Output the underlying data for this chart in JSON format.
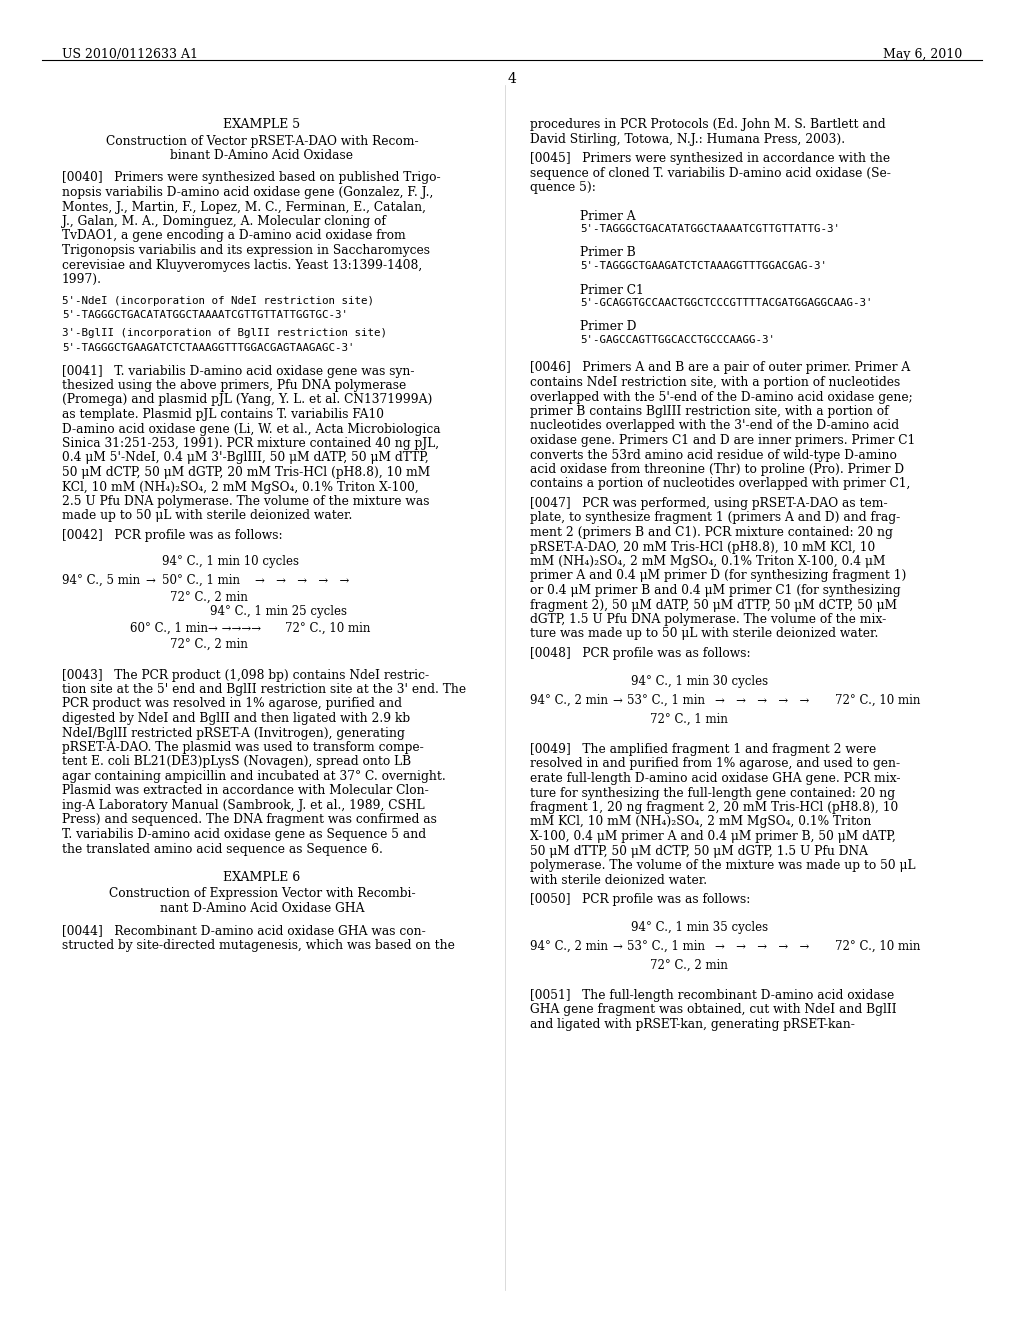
{
  "bg_color": "#ffffff",
  "header_left": "US 2010/0112633 A1",
  "header_right": "May 6, 2010",
  "page_number": "4",
  "content": {
    "example5_title": "EXAMPLE 5",
    "example5_subtitle1": "Construction of Vector pRSET-A-DAO with Recom-",
    "example5_subtitle2": "binant D-Amino Acid Oxidase",
    "para_0040_lines": [
      "[0040]   Primers were synthesized based on published Trigo-",
      "nopsis variabilis D-amino acid oxidase gene (Gonzalez, F. J.,",
      "Montes, J., Martin, F., Lopez, M. C., Ferminan, E., Catalan,",
      "J., Galan, M. A., Dominguez, A. Molecular cloning of",
      "TvDAO1, a gene encoding a D-amino acid oxidase from",
      "Trigonopsis variabilis and its expression in Saccharomyces",
      "cerevisiae and Kluyveromyces lactis. Yeast 13:1399-1408,",
      "1997)."
    ],
    "ndei_label": "5'-NdeI (incorporation of NdeI restriction site)",
    "ndei_seq": "5'-TAGGGCTGACATATGGCTAAAATCGTTGTTATTGGTGC-3'",
    "bglii_label": "3'-BglII (incorporation of BglII restriction site)",
    "bglii_seq": "5'-TAGGGCTGAAGATCTCTAAAGGTTTGGACGAGTAAGAGC-3'",
    "para_0041_lines": [
      "[0041]   T. variabilis D-amino acid oxidase gene was syn-",
      "thesized using the above primers, Pfu DNA polymerase",
      "(Promega) and plasmid pJL (Yang, Y. L. et al. CN1371999A)",
      "as template. Plasmid pJL contains T. variabilis FA10",
      "D-amino acid oxidase gene (Li, W. et al., Acta Microbiologica",
      "Sinica 31:251-253, 1991). PCR mixture contained 40 ng pJL,",
      "0.4 μM 5'-NdeI, 0.4 μM 3'-BglIII, 50 μM dATP, 50 μM dTTP,",
      "50 μM dCTP, 50 μM dGTP, 20 mM Tris-HCl (pH8.8), 10 mM",
      "KCl, 10 mM (NH₄)₂SO₄, 2 mM MgSO₄, 0.1% Triton X-100,",
      "2.5 U Pfu DNA polymerase. The volume of the mixture was",
      "made up to 50 μL with sterile deionized water."
    ],
    "para_0042": "[0042]   PCR profile was as follows:",
    "pcr1_centered": "94° C., 1 min 10 cycles",
    "pcr1_row1_a": "94° C., 5 min",
    "pcr1_row1_b": "→",
    "pcr1_row1_c": "50° C., 1 min",
    "pcr1_row1_d": "→   →   →   →   →",
    "pcr1_row2": "72° C., 2 min",
    "pcr1_row3": "94° C., 1 min 25 cycles",
    "pcr1_row4_a": "60° C., 1 min",
    "pcr1_row4_b": "→ →→→→",
    "pcr1_row4_c": "72° C., 10 min",
    "pcr1_row5": "72° C., 2 min",
    "para_0043_lines": [
      "[0043]   The PCR product (1,098 bp) contains NdeI restric-",
      "tion site at the 5' end and BglII restriction site at the 3' end. The",
      "PCR product was resolved in 1% agarose, purified and",
      "digested by NdeI and BglII and then ligated with 2.9 kb",
      "NdeI/BglII restricted pRSET-A (Invitrogen), generating",
      "pRSET-A-DAO. The plasmid was used to transform compe-",
      "tent E. coli BL21(DE3)pLysS (Novagen), spread onto LB",
      "agar containing ampicillin and incubated at 37° C. overnight.",
      "Plasmid was extracted in accordance with Molecular Clon-",
      "ing-A Laboratory Manual (Sambrook, J. et al., 1989, CSHL",
      "Press) and sequenced. The DNA fragment was confirmed as",
      "T. variabilis D-amino acid oxidase gene as Sequence 5 and",
      "the translated amino acid sequence as Sequence 6."
    ],
    "example6_title": "EXAMPLE 6",
    "example6_subtitle1": "Construction of Expression Vector with Recombi-",
    "example6_subtitle2": "nant D-Amino Acid Oxidase GHA",
    "para_0044_lines": [
      "[0044]   Recombinant D-amino acid oxidase GHA was con-",
      "structed by site-directed mutagenesis, which was based on the"
    ],
    "right_intro_lines": [
      "procedures in PCR Protocols (Ed. John M. S. Bartlett and",
      "David Stirling, Totowa, N.J.: Humana Press, 2003)."
    ],
    "para_0045_lines": [
      "[0045]   Primers were synthesized in accordance with the",
      "sequence of cloned T. variabilis D-amino acid oxidase (Se-",
      "quence 5):"
    ],
    "primer_a_label": "Primer A",
    "primer_a_seq": "5'-TAGGGCTGACATATGGCTAAAATCGTTGTTATTG-3'",
    "primer_b_label": "Primer B",
    "primer_b_seq": "5'-TAGGGCTGAAGATCTCTAAAGGTTTGGACGAG-3'",
    "primer_c1_label": "Primer C1",
    "primer_c1_seq": "5'-GCAGGTGCCAACTGGCTCCCGTTTTACGATGGAGGCAAG-3'",
    "primer_d_label": "Primer D",
    "primer_d_seq": "5'-GAGCCAGTTGGCACCTGCCCAAGG-3'",
    "para_0046_lines": [
      "[0046]   Primers A and B are a pair of outer primer. Primer A",
      "contains NdeI restriction site, with a portion of nucleotides",
      "overlapped with the 5'-end of the D-amino acid oxidase gene;",
      "primer B contains BglIII restriction site, with a portion of",
      "nucleotides overlapped with the 3'-end of the D-amino acid",
      "oxidase gene. Primers C1 and D are inner primers. Primer C1",
      "converts the 53rd amino acid residue of wild-type D-amino",
      "acid oxidase from threonine (Thr) to proline (Pro). Primer D",
      "contains a portion of nucleotides overlapped with primer C1,"
    ],
    "para_0047_lines": [
      "[0047]   PCR was performed, using pRSET-A-DAO as tem-",
      "plate, to synthesize fragment 1 (primers A and D) and frag-",
      "ment 2 (primers B and C1). PCR mixture contained: 20 ng",
      "pRSET-A-DAO, 20 mM Tris-HCl (pH8.8), 10 mM KCl, 10",
      "mM (NH₄)₂SO₄, 2 mM MgSO₄, 0.1% Triton X-100, 0.4 μM",
      "primer A and 0.4 μM primer D (for synthesizing fragment 1)",
      "or 0.4 μM primer B and 0.4 μM primer C1 (for synthesizing",
      "fragment 2), 50 μM dATP, 50 μM dTTP, 50 μM dCTP, 50 μM",
      "dGTP, 1.5 U Pfu DNA polymerase. The volume of the mix-",
      "ture was made up to 50 μL with sterile deionized water."
    ],
    "para_0048": "[0048]   PCR profile was as follows:",
    "pcr2_centered": "94° C., 1 min 30 cycles",
    "pcr2_row1_a": "94° C., 2 min",
    "pcr2_row1_b": "→",
    "pcr2_row1_c": "53° C., 1 min",
    "pcr2_row1_d": "→   →   →   →   →",
    "pcr2_row1_e": "72° C., 10 min",
    "pcr2_row2": "72° C., 1 min",
    "para_0049_lines": [
      "[0049]   The amplified fragment 1 and fragment 2 were",
      "resolved in and purified from 1% agarose, and used to gen-",
      "erate full-length D-amino acid oxidase GHA gene. PCR mix-",
      "ture for synthesizing the full-length gene contained: 20 ng",
      "fragment 1, 20 ng fragment 2, 20 mM Tris-HCl (pH8.8), 10",
      "mM KCl, 10 mM (NH₄)₂SO₄, 2 mM MgSO₄, 0.1% Triton",
      "X-100, 0.4 μM primer A and 0.4 μM primer B, 50 μM dATP,",
      "50 μM dTTP, 50 μM dCTP, 50 μM dGTP, 1.5 U Pfu DNA",
      "polymerase. The volume of the mixture was made up to 50 μL",
      "with sterile deionized water."
    ],
    "para_0050": "[0050]   PCR profile was as follows:",
    "pcr3_centered": "94° C., 1 min 35 cycles",
    "pcr3_row1_a": "94° C., 2 min",
    "pcr3_row1_b": "→",
    "pcr3_row1_c": "53° C., 1 min",
    "pcr3_row1_d": "→   →   →   →   →",
    "pcr3_row1_e": "72° C., 10 min",
    "pcr3_row2": "72° C., 2 min",
    "para_0051_lines": [
      "[0051]   The full-length recombinant D-amino acid oxidase",
      "GHA gene fragment was obtained, cut with NdeI and BglII",
      "and ligated with pRSET-kan, generating pRSET-kan-"
    ]
  }
}
